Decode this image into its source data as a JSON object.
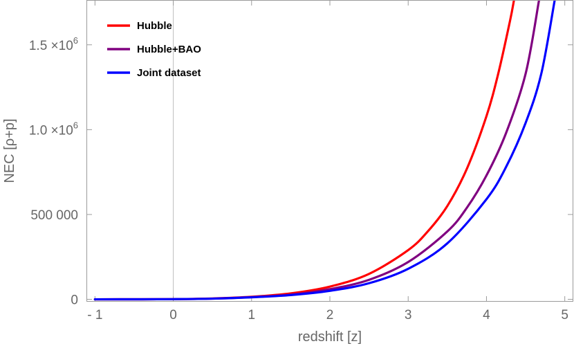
{
  "chart_data": {
    "type": "line",
    "xlabel": "redshift [z]",
    "ylabel": "NEC [ρ+p]",
    "xlim": [
      -1.1,
      5.1
    ],
    "ylim": [
      -10000,
      1760000
    ],
    "x_ticks": [
      {
        "value": -1,
        "label": "- 1"
      },
      {
        "value": 0,
        "label": "0"
      },
      {
        "value": 1,
        "label": "1"
      },
      {
        "value": 2,
        "label": "2"
      },
      {
        "value": 3,
        "label": "3"
      },
      {
        "value": 4,
        "label": "4"
      },
      {
        "value": 5,
        "label": "5"
      }
    ],
    "y_ticks": [
      {
        "value": 0,
        "label": "0"
      },
      {
        "value": 500000,
        "label": "500 000"
      },
      {
        "value": 1000000,
        "label": "1.0 ×10",
        "exp": "6"
      },
      {
        "value": 1500000,
        "label": "1.5 ×10",
        "exp": "6"
      }
    ],
    "grid": false,
    "vertical_reference_line_at_x": 0,
    "legend_position": "top-left",
    "series": [
      {
        "name": "Hubble",
        "color": "#ff0000",
        "x": [
          -1,
          -0.5,
          0,
          0.5,
          1,
          1.5,
          2,
          2.5,
          3,
          3.25,
          3.5,
          3.75,
          4,
          4.15,
          4.3,
          4.35
        ],
        "y": [
          0,
          200,
          1000,
          5000,
          15000,
          35000,
          75000,
          150000,
          290000,
          400000,
          550000,
          770000,
          1080000,
          1330000,
          1640000,
          1760000
        ]
      },
      {
        "name": "Hubble+BAO",
        "color": "#800080",
        "x": [
          -1,
          -0.5,
          0,
          0.5,
          1,
          1.5,
          2,
          2.5,
          3,
          3.5,
          3.75,
          4,
          4.25,
          4.5,
          4.67
        ],
        "y": [
          0,
          200,
          1000,
          4000,
          13000,
          28000,
          60000,
          115000,
          220000,
          400000,
          540000,
          730000,
          980000,
          1330000,
          1760000
        ]
      },
      {
        "name": "Joint dataset",
        "color": "#0000ff",
        "x": [
          -1,
          -0.5,
          0,
          0.5,
          1,
          1.5,
          2,
          2.5,
          3,
          3.5,
          4,
          4.25,
          4.5,
          4.7,
          4.87
        ],
        "y": [
          0,
          200,
          1000,
          4000,
          12000,
          25000,
          50000,
          95000,
          180000,
          330000,
          590000,
          780000,
          1040000,
          1330000,
          1760000
        ]
      }
    ]
  }
}
